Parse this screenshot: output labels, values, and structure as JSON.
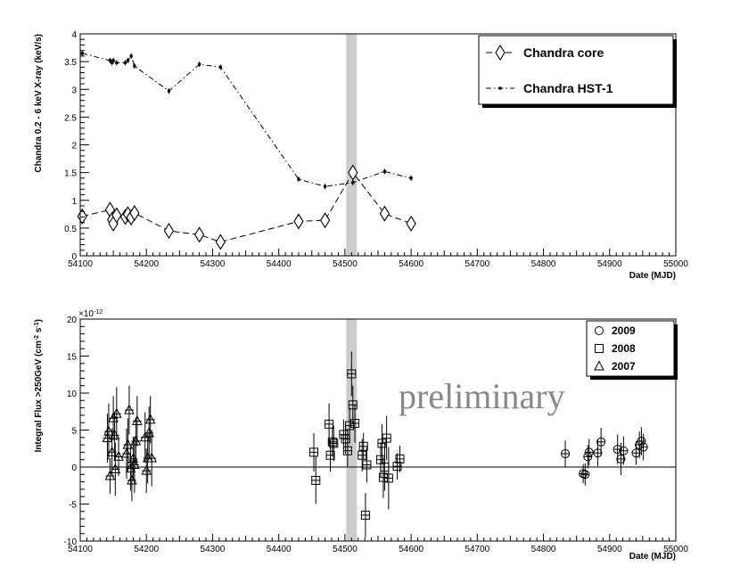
{
  "chart_data": [
    {
      "type": "line",
      "title": "",
      "xlabel": "Date (MJD)",
      "ylabel": "Chandra 0.2 - 6 keV X-ray (keV/s)",
      "xlim": [
        54100,
        55000
      ],
      "ylim": [
        0,
        4
      ],
      "xticks": [
        "54100",
        "54200",
        "54300",
        "54400",
        "54500",
        "54600",
        "54700",
        "54800",
        "54900",
        "55000"
      ],
      "yticks": [
        "0",
        "0.5",
        "1",
        "1.5",
        "2",
        "2.5",
        "3",
        "3.5",
        "4"
      ],
      "shaded_band": {
        "x": [
          54502,
          54518
        ],
        "color": "#cccccc"
      },
      "legend": {
        "position": "top-right"
      },
      "series": [
        {
          "name": "Chandra core",
          "marker": "diamond",
          "style": "dashed",
          "x": [
            54103,
            54145,
            54148,
            54150,
            54155,
            54168,
            54172,
            54177,
            54182,
            54234,
            54280,
            54312,
            54430,
            54470,
            54512,
            54560,
            54600
          ],
          "y": [
            0.71,
            0.83,
            0.65,
            0.58,
            0.73,
            0.7,
            0.75,
            0.69,
            0.77,
            0.45,
            0.38,
            0.25,
            0.62,
            0.64,
            1.5,
            0.76,
            0.58
          ]
        },
        {
          "name": "Chandra HST-1",
          "marker": "dot",
          "style": "dash-dot",
          "x": [
            54103,
            54145,
            54148,
            54150,
            54155,
            54168,
            54172,
            54177,
            54182,
            54234,
            54280,
            54312,
            54430,
            54470,
            54512,
            54560,
            54600
          ],
          "y": [
            3.65,
            3.52,
            3.48,
            3.52,
            3.48,
            3.48,
            3.52,
            3.6,
            3.42,
            2.97,
            3.45,
            3.4,
            1.38,
            1.25,
            1.32,
            1.52,
            1.4
          ]
        }
      ]
    },
    {
      "type": "scatter",
      "title": "",
      "xlabel": "Date (MJD)",
      "ylabel": "Integral Flux >250GeV (cm",
      "ylabel_sup1": "-2",
      "ylabel_mid": " s",
      "ylabel_sup2": "-1",
      "ylabel_end": ")",
      "yexp": "×10",
      "yexp_power": "-12",
      "annotation": "preliminary",
      "xlim": [
        54100,
        55000
      ],
      "ylim": [
        -10,
        20
      ],
      "xticks": [
        "54100",
        "54200",
        "54300",
        "54400",
        "54500",
        "54600",
        "54700",
        "54800",
        "54900",
        "55000"
      ],
      "yticks": [
        "-10",
        "-5",
        "0",
        "5",
        "10",
        "15",
        "20"
      ],
      "shaded_band": {
        "x": [
          54502,
          54518
        ],
        "color": "#cccccc"
      },
      "legend": {
        "position": "top-right"
      },
      "series": [
        {
          "name": "2009",
          "marker": "circle",
          "points": [
            [
              54833,
              1.8,
              1.8
            ],
            [
              54860,
              -0.9,
              1.3
            ],
            [
              54863,
              -1.0,
              1.5
            ],
            [
              54867,
              1.4,
              1.6
            ],
            [
              54869,
              2.0,
              1.8
            ],
            [
              54882,
              1.9,
              1.8
            ],
            [
              54887,
              3.4,
              1.9
            ],
            [
              54912,
              2.4,
              2.0
            ],
            [
              54917,
              1.1,
              2.2
            ],
            [
              54921,
              2.2,
              1.9
            ],
            [
              54940,
              1.9,
              1.6
            ],
            [
              54945,
              3.0,
              1.8
            ],
            [
              54948,
              3.5,
              1.9
            ],
            [
              54951,
              2.7,
              1.8
            ]
          ]
        },
        {
          "name": "2008",
          "marker": "square",
          "points": [
            [
              54453,
              2.0,
              2.6
            ],
            [
              54456,
              -1.8,
              3.2
            ],
            [
              54476,
              5.8,
              2.8
            ],
            [
              54478,
              1.6,
              2.2
            ],
            [
              54481,
              3.4,
              2.0
            ],
            [
              54483,
              3.2,
              2.4
            ],
            [
              54498,
              4.4,
              2.0
            ],
            [
              54501,
              3.8,
              2.0
            ],
            [
              54504,
              2.2,
              2.1
            ],
            [
              54507,
              5.6,
              2.4
            ],
            [
              54510,
              12.6,
              3.0
            ],
            [
              54512,
              8.4,
              2.6
            ],
            [
              54515,
              5.9,
              2.6
            ],
            [
              54526,
              1.6,
              2.2
            ],
            [
              54528,
              2.8,
              1.8
            ],
            [
              54531,
              -6.5,
              3.0
            ],
            [
              54533,
              0.3,
              2.4
            ],
            [
              54554,
              1.0,
              2.4
            ],
            [
              54556,
              3.2,
              2.6
            ],
            [
              54558,
              -1.4,
              2.8
            ],
            [
              54560,
              0.0,
              3.2
            ],
            [
              54563,
              3.9,
              3.0
            ],
            [
              54566,
              -1.5,
              4.2
            ],
            [
              54579,
              0.1,
              1.8
            ],
            [
              54583,
              1.1,
              1.8
            ]
          ]
        },
        {
          "name": "2007",
          "marker": "triangle",
          "points": [
            [
              54141,
              3.9,
              3.3
            ],
            [
              54143,
              4.8,
              3.8
            ],
            [
              54145,
              -1.2,
              2.4
            ],
            [
              54148,
              2.0,
              3.2
            ],
            [
              54150,
              6.6,
              3.0
            ],
            [
              54152,
              4.3,
              3.2
            ],
            [
              54153,
              -0.3,
              3.6
            ],
            [
              54155,
              7.2,
              3.6
            ],
            [
              54158,
              1.4,
              2.6
            ],
            [
              54170,
              1.8,
              3.4
            ],
            [
              54172,
              3.0,
              3.6
            ],
            [
              54174,
              7.7,
              3.3
            ],
            [
              54176,
              -0.2,
              3.0
            ],
            [
              54178,
              -1.8,
              2.8
            ],
            [
              54180,
              1.1,
              3.0
            ],
            [
              54182,
              0.3,
              3.8
            ],
            [
              54184,
              3.5,
              3.2
            ],
            [
              54186,
              6.2,
              3.4
            ],
            [
              54198,
              4.0,
              3.4
            ],
            [
              54200,
              -0.5,
              3.0
            ],
            [
              54202,
              1.2,
              3.4
            ],
            [
              54204,
              4.6,
              3.6
            ],
            [
              54206,
              6.4,
              3.2
            ],
            [
              54208,
              1.2,
              3.8
            ]
          ]
        }
      ]
    }
  ]
}
